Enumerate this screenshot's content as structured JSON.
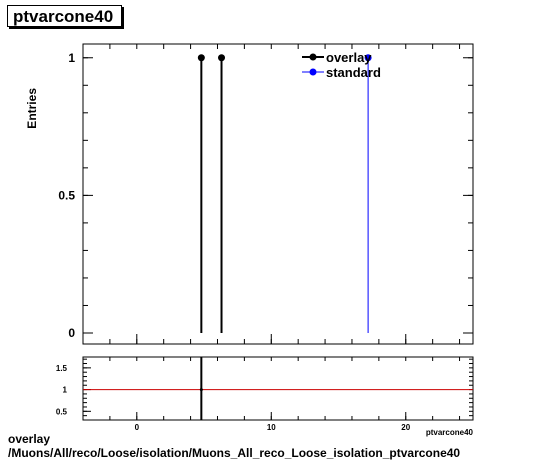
{
  "title": "ptvarcone40",
  "footer": {
    "line1": "overlay",
    "line2": "/Muons/All/reco/Loose/isolation/Muons_All_reco_Loose_isolation_ptvarcone40"
  },
  "chart_data": [
    {
      "type": "line",
      "title": "ptvarcone40",
      "ylabel": "Entries",
      "xlim": [
        -4,
        25
      ],
      "ylim": [
        -0.04,
        1.05
      ],
      "yticks": [
        0,
        0.5,
        1
      ],
      "ytick_labels": [
        "0",
        "0.5",
        "1"
      ],
      "legend_position": "top-right",
      "series": [
        {
          "name": "overlay",
          "color": "#000000",
          "marker": "filled-circle",
          "points": [
            [
              4.8,
              1
            ],
            [
              6.3,
              1
            ]
          ]
        },
        {
          "name": "standard",
          "color": "#0000ff",
          "marker": "filled-circle",
          "points": [
            [
              17.2,
              1
            ]
          ]
        }
      ]
    },
    {
      "type": "line",
      "title": "",
      "xlabel": "ptvarcone40",
      "xlim": [
        -4,
        25
      ],
      "ylim": [
        0.3,
        1.75
      ],
      "xticks": [
        0,
        10,
        20
      ],
      "xtick_labels": [
        "0",
        "10",
        "20"
      ],
      "yticks": [
        0.5,
        1,
        1.5
      ],
      "ytick_labels": [
        "0.5",
        "1",
        "1.5"
      ],
      "reference_line": {
        "y": 1,
        "color": "#cc0000"
      },
      "series": [
        {
          "name": "ratio",
          "color": "#000000",
          "points": [
            [
              4.8,
              1
            ]
          ]
        }
      ]
    }
  ]
}
